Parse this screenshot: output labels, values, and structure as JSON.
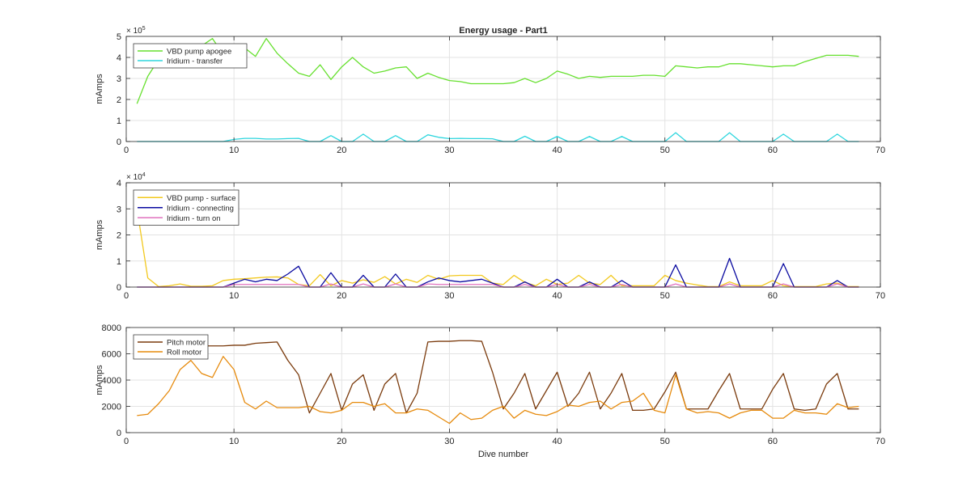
{
  "chart_data": [
    {
      "type": "line",
      "title": "Energy usage - Part1",
      "xlabel": "",
      "ylabel": "mAmps",
      "xlim": [
        0,
        70
      ],
      "ylim": [
        0,
        500000
      ],
      "xticks": [
        0,
        10,
        20,
        30,
        40,
        50,
        60,
        70
      ],
      "yticks": [
        0,
        100000,
        200000,
        300000,
        400000,
        500000
      ],
      "ytick_labels": [
        "0",
        "1",
        "2",
        "3",
        "4",
        "5"
      ],
      "y_exponent": {
        "base": "× 10",
        "power": "5"
      },
      "grid": true,
      "legend_position": "top-left",
      "series": [
        {
          "name": "VBD pump apogee",
          "color": "#66e02e",
          "x": [
            1,
            2,
            3,
            4,
            5,
            6,
            7,
            8,
            9,
            10,
            11,
            12,
            13,
            14,
            15,
            16,
            17,
            18,
            19,
            20,
            21,
            22,
            23,
            24,
            25,
            26,
            27,
            28,
            29,
            30,
            31,
            32,
            33,
            34,
            35,
            36,
            37,
            38,
            39,
            40,
            41,
            42,
            43,
            44,
            45,
            46,
            47,
            48,
            49,
            50,
            51,
            52,
            53,
            54,
            55,
            56,
            57,
            58,
            59,
            60,
            61,
            62,
            63,
            64,
            65,
            66,
            67,
            68
          ],
          "values": [
            180000,
            310000,
            390000,
            450000,
            440000,
            455000,
            455000,
            490000,
            415000,
            415000,
            445000,
            405000,
            490000,
            420000,
            370000,
            325000,
            310000,
            365000,
            295000,
            355000,
            400000,
            355000,
            325000,
            335000,
            350000,
            355000,
            300000,
            325000,
            305000,
            290000,
            285000,
            275000,
            275000,
            275000,
            275000,
            280000,
            300000,
            280000,
            300000,
            335000,
            320000,
            300000,
            310000,
            305000,
            310000,
            310000,
            310000,
            315000,
            315000,
            310000,
            360000,
            355000,
            350000,
            355000,
            355000,
            370000,
            370000,
            365000,
            360000,
            355000,
            360000,
            360000,
            380000,
            395000,
            410000,
            410000,
            410000,
            405000
          ]
        },
        {
          "name": "Iridium - transfer",
          "color": "#2ed6de",
          "x": [
            1,
            2,
            3,
            4,
            5,
            6,
            7,
            8,
            9,
            10,
            11,
            12,
            13,
            14,
            15,
            16,
            17,
            18,
            19,
            20,
            21,
            22,
            23,
            24,
            25,
            26,
            27,
            28,
            29,
            30,
            31,
            32,
            33,
            34,
            35,
            36,
            37,
            38,
            39,
            40,
            41,
            42,
            43,
            44,
            45,
            46,
            47,
            48,
            49,
            50,
            51,
            52,
            53,
            54,
            55,
            56,
            57,
            58,
            59,
            60,
            61,
            62,
            63,
            64,
            65,
            66,
            67,
            68
          ],
          "values": [
            0,
            0,
            0,
            0,
            0,
            0,
            0,
            0,
            0,
            10000,
            15000,
            15000,
            12000,
            12000,
            14000,
            15000,
            0,
            0,
            28000,
            0,
            0,
            35000,
            0,
            0,
            28000,
            0,
            0,
            32000,
            20000,
            14000,
            15000,
            14000,
            14000,
            13000,
            0,
            0,
            25000,
            0,
            0,
            24000,
            0,
            0,
            24000,
            0,
            0,
            24000,
            0,
            0,
            0,
            0,
            42000,
            0,
            0,
            0,
            0,
            42000,
            0,
            0,
            0,
            0,
            35000,
            0,
            0,
            0,
            0,
            35000,
            0,
            0
          ]
        }
      ]
    },
    {
      "type": "line",
      "title": "",
      "xlabel": "",
      "ylabel": "mAmps",
      "xlim": [
        0,
        70
      ],
      "ylim": [
        0,
        40000
      ],
      "xticks": [
        0,
        10,
        20,
        30,
        40,
        50,
        60,
        70
      ],
      "yticks": [
        0,
        10000,
        20000,
        30000,
        40000
      ],
      "ytick_labels": [
        "0",
        "1",
        "2",
        "3",
        "4"
      ],
      "y_exponent": {
        "base": "× 10",
        "power": "4"
      },
      "grid": true,
      "legend_position": "top-left",
      "series": [
        {
          "name": "VBD pump - surface",
          "color": "#f2c81d",
          "x": [
            1,
            2,
            3,
            4,
            5,
            6,
            7,
            8,
            9,
            10,
            11,
            12,
            13,
            14,
            15,
            16,
            17,
            18,
            19,
            20,
            21,
            22,
            23,
            24,
            25,
            26,
            27,
            28,
            29,
            30,
            31,
            32,
            33,
            34,
            35,
            36,
            37,
            38,
            39,
            40,
            41,
            42,
            43,
            44,
            45,
            46,
            47,
            48,
            49,
            50,
            51,
            52,
            53,
            54,
            55,
            56,
            57,
            58,
            59,
            60,
            61,
            62,
            63,
            64,
            65,
            66,
            67,
            68
          ],
          "values": [
            30000,
            3500,
            200,
            500,
            1200,
            300,
            300,
            500,
            2500,
            3000,
            3200,
            3500,
            3800,
            3900,
            3500,
            1000,
            500,
            4800,
            500,
            2500,
            1500,
            2800,
            1800,
            4000,
            1200,
            3000,
            1800,
            4500,
            3000,
            4300,
            4500,
            4500,
            4500,
            1500,
            1000,
            4500,
            1800,
            500,
            3000,
            1000,
            1500,
            4500,
            1500,
            1000,
            4500,
            500,
            500,
            500,
            500,
            4500,
            2500,
            1500,
            800,
            200,
            200,
            2000,
            500,
            500,
            500,
            2500,
            500,
            200,
            200,
            200,
            1200,
            1500,
            200,
            200
          ]
        },
        {
          "name": "Iridium - connecting",
          "color": "#0a0aa0",
          "x": [
            1,
            2,
            3,
            4,
            5,
            6,
            7,
            8,
            9,
            10,
            11,
            12,
            13,
            14,
            15,
            16,
            17,
            18,
            19,
            20,
            21,
            22,
            23,
            24,
            25,
            26,
            27,
            28,
            29,
            30,
            31,
            32,
            33,
            34,
            35,
            36,
            37,
            38,
            39,
            40,
            41,
            42,
            43,
            44,
            45,
            46,
            47,
            48,
            49,
            50,
            51,
            52,
            53,
            54,
            55,
            56,
            57,
            58,
            59,
            60,
            61,
            62,
            63,
            64,
            65,
            66,
            67,
            68
          ],
          "values": [
            0,
            0,
            0,
            0,
            0,
            0,
            0,
            0,
            0,
            1500,
            3000,
            2000,
            3000,
            2500,
            5000,
            8000,
            0,
            0,
            5500,
            0,
            0,
            4500,
            0,
            0,
            5000,
            0,
            0,
            2000,
            3500,
            2500,
            2000,
            2500,
            3000,
            1500,
            0,
            0,
            2000,
            0,
            0,
            3000,
            0,
            0,
            2000,
            0,
            0,
            2500,
            0,
            0,
            0,
            0,
            8500,
            0,
            0,
            0,
            0,
            11000,
            0,
            0,
            0,
            0,
            9000,
            0,
            0,
            0,
            0,
            2500,
            0,
            0
          ]
        },
        {
          "name": "Iridium - turn on",
          "color": "#e071be",
          "x": [
            1,
            2,
            3,
            4,
            5,
            6,
            7,
            8,
            9,
            10,
            11,
            12,
            13,
            14,
            15,
            16,
            17,
            18,
            19,
            20,
            21,
            22,
            23,
            24,
            25,
            26,
            27,
            28,
            29,
            30,
            31,
            32,
            33,
            34,
            35,
            36,
            37,
            38,
            39,
            40,
            41,
            42,
            43,
            44,
            45,
            46,
            47,
            48,
            49,
            50,
            51,
            52,
            53,
            54,
            55,
            56,
            57,
            58,
            59,
            60,
            61,
            62,
            63,
            64,
            65,
            66,
            67,
            68
          ],
          "values": [
            0,
            0,
            0,
            0,
            0,
            0,
            0,
            0,
            0,
            1000,
            1000,
            1000,
            1000,
            1000,
            1000,
            1000,
            0,
            0,
            1200,
            0,
            0,
            1200,
            0,
            0,
            1200,
            0,
            0,
            1200,
            1000,
            1000,
            1000,
            1000,
            1000,
            1000,
            0,
            0,
            1000,
            0,
            0,
            1000,
            0,
            0,
            1000,
            0,
            0,
            1000,
            0,
            0,
            0,
            0,
            1200,
            0,
            0,
            0,
            0,
            1200,
            0,
            0,
            0,
            0,
            1200,
            0,
            0,
            0,
            0,
            1200,
            0,
            0
          ]
        }
      ]
    },
    {
      "type": "line",
      "title": "",
      "xlabel": "Dive number",
      "ylabel": "mAmps",
      "xlim": [
        0,
        70
      ],
      "ylim": [
        0,
        8000
      ],
      "xticks": [
        0,
        10,
        20,
        30,
        40,
        50,
        60,
        70
      ],
      "yticks": [
        0,
        2000,
        4000,
        6000,
        8000
      ],
      "ytick_labels": [
        "0",
        "2000",
        "4000",
        "6000",
        "8000"
      ],
      "grid": true,
      "legend_position": "top-left",
      "series": [
        {
          "name": "Pitch motor",
          "color": "#7a3a0c",
          "x": [
            6,
            7,
            8,
            9,
            10,
            11,
            12,
            13,
            14,
            15,
            16,
            17,
            18,
            19,
            20,
            21,
            22,
            23,
            24,
            25,
            26,
            27,
            28,
            29,
            30,
            31,
            32,
            33,
            34,
            35,
            36,
            37,
            38,
            39,
            40,
            41,
            42,
            43,
            44,
            45,
            46,
            47,
            48,
            49,
            50,
            51,
            52,
            53,
            54,
            55,
            56,
            57,
            58,
            59,
            60,
            61,
            62,
            63,
            64,
            65,
            66,
            67,
            68
          ],
          "values": [
            6600,
            6600,
            6600,
            6600,
            6650,
            6650,
            6800,
            6850,
            6900,
            5500,
            4400,
            1500,
            3000,
            4500,
            1700,
            3700,
            4400,
            1700,
            3700,
            4500,
            1500,
            3000,
            6900,
            6950,
            6950,
            7000,
            7000,
            6950,
            4600,
            1800,
            3000,
            4500,
            1800,
            3200,
            4600,
            2000,
            3000,
            4600,
            1800,
            3000,
            4500,
            1700,
            1700,
            1800,
            3100,
            4600,
            1800,
            1800,
            1800,
            3200,
            4500,
            1800,
            1800,
            1800,
            3300,
            4500,
            1800,
            1700,
            1800,
            3700,
            4500,
            1800,
            1800
          ]
        },
        {
          "name": "Roll motor",
          "color": "#e68a0c",
          "x": [
            1,
            2,
            3,
            4,
            5,
            6,
            7,
            8,
            9,
            10,
            11,
            12,
            13,
            14,
            15,
            16,
            17,
            18,
            19,
            20,
            21,
            22,
            23,
            24,
            25,
            26,
            27,
            28,
            29,
            30,
            31,
            32,
            33,
            34,
            35,
            36,
            37,
            38,
            39,
            40,
            41,
            42,
            43,
            44,
            45,
            46,
            47,
            48,
            49,
            50,
            51,
            52,
            53,
            54,
            55,
            56,
            57,
            58,
            59,
            60,
            61,
            62,
            63,
            64,
            65,
            66,
            67,
            68
          ],
          "values": [
            1300,
            1400,
            2200,
            3200,
            4800,
            5500,
            4500,
            4200,
            5800,
            4800,
            2300,
            1800,
            2400,
            1900,
            1900,
            1900,
            2000,
            1600,
            1500,
            1700,
            2300,
            2300,
            2000,
            2200,
            1500,
            1500,
            1800,
            1700,
            1200,
            700,
            1500,
            1000,
            1100,
            1700,
            2000,
            1100,
            1700,
            1400,
            1300,
            1600,
            2100,
            2000,
            2300,
            2400,
            1800,
            2300,
            2400,
            3000,
            1700,
            1500,
            4400,
            1800,
            1500,
            1600,
            1500,
            1100,
            1500,
            1700,
            1700,
            1100,
            1100,
            1700,
            1500,
            1500,
            1400,
            2200,
            1900,
            2000
          ]
        }
      ]
    }
  ]
}
